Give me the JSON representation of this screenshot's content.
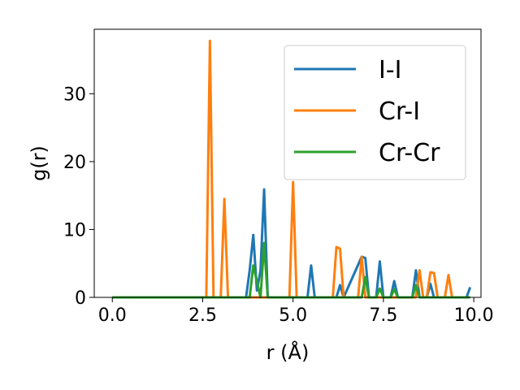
{
  "chart_data": {
    "type": "line",
    "xlabel": "r (Å)",
    "ylabel": "g(r)",
    "xlim": [
      -0.5,
      10.2
    ],
    "ylim": [
      0,
      39.5
    ],
    "xticks": [
      0.0,
      2.5,
      5.0,
      7.5,
      10.0
    ],
    "xtick_labels": [
      "0.0",
      "2.5",
      "5.0",
      "7.5",
      "10.0"
    ],
    "yticks": [
      0,
      10,
      20,
      30
    ],
    "ytick_labels": [
      "0",
      "10",
      "20",
      "30"
    ],
    "grid": false,
    "legend_position": "top-right",
    "series": [
      {
        "name": "I-I",
        "color": "#1f77b4",
        "x": [
          0.0,
          3.7,
          3.8,
          3.9,
          4.0,
          4.1,
          4.2,
          4.3,
          5.4,
          5.5,
          5.6,
          6.2,
          6.3,
          6.4,
          6.9,
          7.0,
          7.1,
          7.3,
          7.4,
          7.5,
          7.7,
          7.8,
          7.9,
          8.3,
          8.4,
          8.5,
          8.7,
          8.8,
          8.9,
          9.8,
          9.9
        ],
        "y": [
          0,
          0,
          4,
          9.2,
          1,
          4,
          15.9,
          0,
          0,
          4.7,
          0,
          0,
          1.8,
          0,
          6,
          5.8,
          0,
          0,
          5.3,
          0,
          0,
          2.4,
          0,
          0,
          4,
          0,
          0,
          2,
          0,
          0,
          1.5
        ]
      },
      {
        "name": "Cr-I",
        "color": "#ff7f0e",
        "x": [
          0.0,
          2.6,
          2.7,
          2.8,
          3.0,
          3.1,
          3.2,
          4.9,
          5.0,
          5.1,
          6.1,
          6.2,
          6.3,
          6.4,
          6.8,
          6.9,
          7.0,
          8.4,
          8.5,
          8.6,
          8.7,
          8.8,
          8.9,
          9.0,
          9.2,
          9.3,
          9.4
        ],
        "y": [
          0,
          0,
          37.8,
          0,
          0,
          14.5,
          0,
          0,
          17,
          0,
          0,
          7.4,
          7.2,
          0,
          0,
          6,
          0,
          0,
          4,
          0,
          0,
          3.7,
          3.6,
          0,
          0,
          3.3,
          0
        ]
      },
      {
        "name": "Cr-Cr",
        "color": "#2ca02c",
        "x": [
          0.0,
          3.7,
          3.8,
          3.9,
          4.1,
          4.2,
          4.3,
          6.9,
          7.0,
          7.1,
          7.3,
          7.4,
          7.5,
          7.7,
          7.8,
          7.9,
          8.3,
          8.4,
          8.5,
          9.9
        ],
        "y": [
          0,
          0,
          0,
          4.7,
          0,
          8,
          0,
          0,
          3,
          0,
          0,
          1.3,
          0,
          0,
          1.2,
          0,
          0,
          1.8,
          0,
          0
        ]
      }
    ]
  }
}
